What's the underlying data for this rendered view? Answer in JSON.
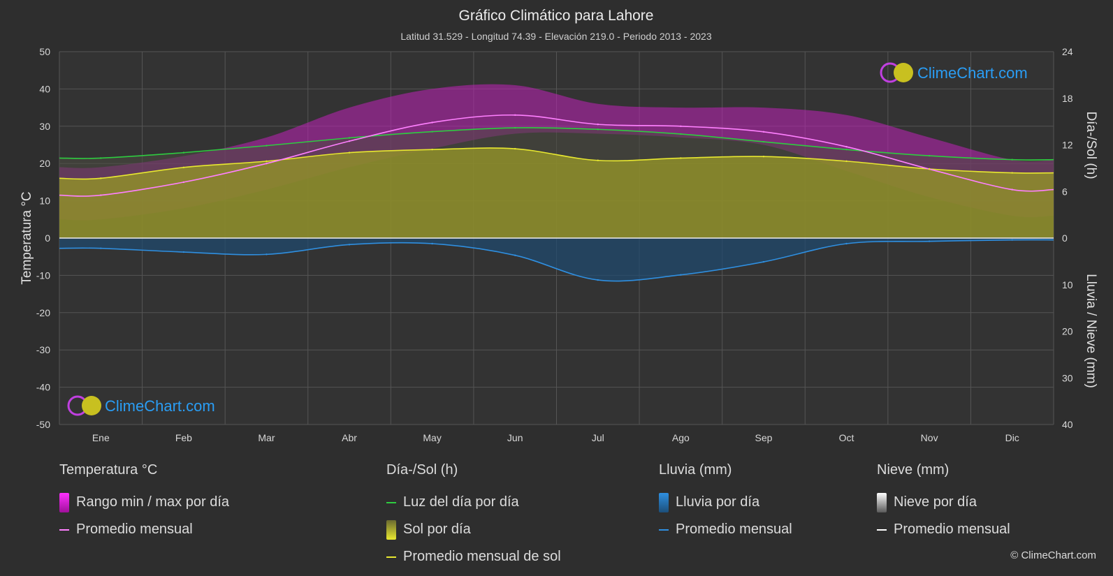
{
  "chart_data": {
    "type": "area",
    "title": "Gráfico Climático para Lahore",
    "subtitle": "Latitud 31.529 - Longitud 74.39 - Elevación 219.0 - Periodo 2013 - 2023",
    "ylabel_left": "Temperatura °C",
    "ylabel_right_top": "Día-/Sol (h)",
    "ylabel_right_bottom": "Lluvia / Nieve (mm)",
    "categories": [
      "Ene",
      "Feb",
      "Mar",
      "Abr",
      "May",
      "Jun",
      "Jul",
      "Ago",
      "Sep",
      "Oct",
      "Nov",
      "Dic"
    ],
    "y_left": {
      "min": -50,
      "max": 50,
      "ticks": [
        "50",
        "40",
        "30",
        "20",
        "10",
        "0",
        "-10",
        "-20",
        "-30",
        "-40",
        "-50"
      ]
    },
    "y_right_top": {
      "min": 0,
      "max": 24,
      "ticks": [
        "24",
        "18",
        "12",
        "6",
        "0"
      ]
    },
    "y_right_bottom": {
      "min": 0,
      "max": 40,
      "ticks": [
        "10",
        "20",
        "30",
        "40"
      ]
    },
    "series": [
      {
        "name": "Promedio mensual",
        "group": "Temperatura °C",
        "color": "#ff80ff",
        "values": [
          11.5,
          15,
          20,
          26,
          31,
          33,
          30.5,
          30,
          28.5,
          24.5,
          18.5,
          13
        ]
      },
      {
        "name": "Rango min / max por día",
        "group": "Temperatura °C",
        "color": "#e020d0",
        "min": [
          5,
          8,
          13,
          19,
          24,
          28,
          28,
          27,
          25,
          18,
          11,
          6
        ],
        "max": [
          19,
          22,
          27,
          35,
          40,
          41,
          36,
          35,
          35,
          33,
          27,
          21
        ]
      },
      {
        "name": "Luz del día por día",
        "group": "Día-/Sol (h)",
        "color": "#2ecc40",
        "values": [
          10.3,
          11.0,
          11.9,
          12.9,
          13.7,
          14.2,
          14.0,
          13.4,
          12.4,
          11.4,
          10.6,
          10.1
        ]
      },
      {
        "name": "Promedio mensual de sol",
        "group": "Día-/Sol (h)",
        "color": "#e8e830",
        "values": [
          7.7,
          9.1,
          9.9,
          11.0,
          11.4,
          11.5,
          10.0,
          10.3,
          10.5,
          9.9,
          8.9,
          8.4
        ]
      },
      {
        "name": "Promedio mensual",
        "group": "Lluvia (mm)",
        "color": "#2f8fe0",
        "values": [
          2.2,
          3.0,
          3.5,
          1.4,
          1.2,
          3.7,
          9.0,
          7.9,
          5.1,
          1.2,
          0.7,
          0.4
        ]
      },
      {
        "name": "Promedio mensual",
        "group": "Nieve (mm)",
        "color": "#ffffff",
        "values": [
          0,
          0,
          0,
          0,
          0,
          0,
          0,
          0,
          0,
          0,
          0,
          0
        ]
      }
    ],
    "grid": true,
    "legend_position": "bottom"
  },
  "legend": {
    "temp": {
      "title": "Temperatura °C",
      "range": "Rango min / max por día",
      "avg": "Promedio mensual"
    },
    "sun": {
      "title": "Día-/Sol (h)",
      "daylight": "Luz del día por día",
      "sunshine": "Sol por día",
      "sun_avg": "Promedio mensual de sol"
    },
    "rain": {
      "title": "Lluvia (mm)",
      "daily": "Lluvia por día",
      "avg": "Promedio mensual"
    },
    "snow": {
      "title": "Nieve (mm)",
      "daily": "Nieve por día",
      "avg": "Promedio mensual"
    }
  },
  "colors": {
    "background": "#2e2e2e",
    "temp_range": "#e020d0",
    "temp_avg": "#ff80ff",
    "daylight": "#2ecc40",
    "sunshine": "#b8b828",
    "sun_avg": "#e8e830",
    "rain": "#2f8fe0",
    "snow": "#ffffff",
    "brand": "#2a9df4"
  },
  "branding": {
    "logo_text": "ClimeChart.com",
    "copyright": "© ClimeChart.com"
  }
}
